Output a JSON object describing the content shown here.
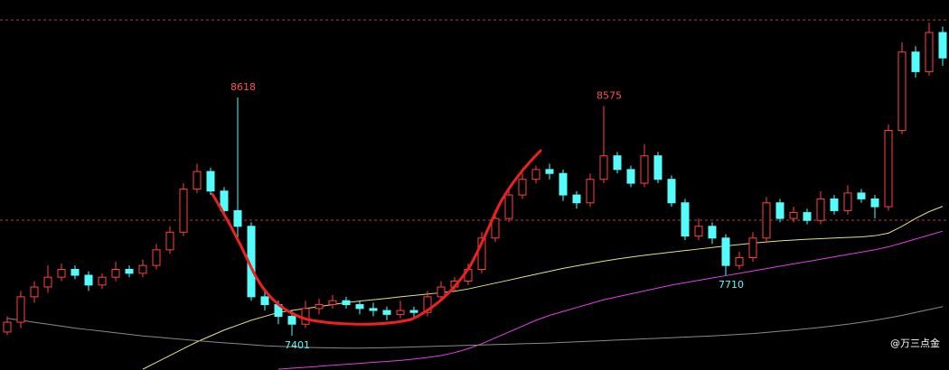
{
  "chart_data": {
    "type": "candlestick",
    "watermark": "@万三点金",
    "ylim": [
      7226,
      9116
    ],
    "up_color": "#ff4040",
    "down_color": "#54fcfc",
    "reference_lines": [
      9014,
      7991
    ],
    "reference_color": "#b83a3a",
    "open": [
      7420,
      7470,
      7600,
      7650,
      7700,
      7740,
      7710,
      7660,
      7700,
      7740,
      7720,
      7760,
      7840,
      7930,
      8150,
      8240,
      8140,
      8040,
      7960,
      7600,
      7560,
      7500,
      7460,
      7540,
      7560,
      7580,
      7560,
      7540,
      7530,
      7510,
      7530,
      7520,
      7600,
      7650,
      7680,
      7740,
      7900,
      8000,
      8120,
      8200,
      8250,
      8230,
      8120,
      8080,
      8200,
      8320,
      8250,
      8180,
      8320,
      8200,
      8080,
      7910,
      7960,
      7900,
      7760,
      7800,
      7900,
      8080,
      8000,
      8030,
      7990,
      8100,
      8040,
      8130,
      8100,
      8060,
      8450,
      8850,
      8750,
      8950
    ],
    "high": [
      7500,
      7630,
      7680,
      7760,
      7770,
      7760,
      7730,
      7720,
      7780,
      7760,
      7790,
      7870,
      7960,
      8180,
      8280,
      8260,
      8160,
      8618,
      7980,
      7630,
      7580,
      7530,
      7580,
      7590,
      7610,
      7600,
      7580,
      7570,
      7550,
      7580,
      7550,
      7630,
      7680,
      7700,
      7770,
      7930,
      8040,
      8150,
      8230,
      8270,
      8280,
      8250,
      8140,
      8230,
      8575,
      8340,
      8270,
      8380,
      8340,
      8220,
      8100,
      8000,
      7980,
      7920,
      7830,
      7930,
      8110,
      8100,
      8060,
      8050,
      8140,
      8120,
      8170,
      8150,
      8120,
      8480,
      8900,
      8880,
      9000,
      8980
    ],
    "low": [
      7405,
      7440,
      7570,
      7620,
      7680,
      7690,
      7630,
      7640,
      7680,
      7700,
      7700,
      7740,
      7820,
      7910,
      8130,
      8120,
      8020,
      7900,
      7580,
      7530,
      7460,
      7401,
      7440,
      7510,
      7540,
      7540,
      7510,
      7500,
      7480,
      7490,
      7490,
      7500,
      7580,
      7630,
      7660,
      7720,
      7880,
      7980,
      8100,
      8180,
      8200,
      8090,
      8050,
      8060,
      8180,
      8230,
      8160,
      8160,
      8180,
      8060,
      7890,
      7890,
      7870,
      7710,
      7740,
      7780,
      7880,
      7980,
      7980,
      7970,
      7970,
      8020,
      8020,
      8080,
      8000,
      8040,
      8430,
      8720,
      8730,
      8780
    ],
    "close": [
      7470,
      7600,
      7650,
      7700,
      7740,
      7710,
      7660,
      7700,
      7740,
      7720,
      7760,
      7840,
      7930,
      8150,
      8240,
      8140,
      8040,
      7960,
      7600,
      7560,
      7500,
      7460,
      7540,
      7560,
      7580,
      7560,
      7540,
      7530,
      7510,
      7530,
      7520,
      7600,
      7650,
      7680,
      7740,
      7900,
      8000,
      8120,
      8200,
      8250,
      8230,
      8120,
      8080,
      8200,
      8320,
      8250,
      8180,
      8320,
      8200,
      8080,
      7910,
      7960,
      7900,
      7760,
      7800,
      7900,
      8080,
      8000,
      8030,
      7990,
      8100,
      8040,
      8130,
      8100,
      8060,
      8450,
      8850,
      8750,
      8950,
      8820
    ],
    "series": [
      {
        "color": "#e8e07a",
        "values": [
          null,
          null,
          null,
          null,
          null,
          null,
          null,
          null,
          null,
          null,
          7230,
          7265,
          7300,
          7335,
          7370,
          7400,
          7430,
          7455,
          7480,
          7500,
          7520,
          7530,
          7540,
          7550,
          7560,
          7570,
          7578,
          7585,
          7592,
          7600,
          7607,
          7614,
          7621,
          7628,
          7640,
          7655,
          7670,
          7685,
          7700,
          7715,
          7730,
          7745,
          7758,
          7770,
          7782,
          7793,
          7803,
          7812,
          7820,
          7828,
          7836,
          7844,
          7852,
          7860,
          7867,
          7874,
          7880,
          7886,
          7890,
          7894,
          7897,
          7900,
          7903,
          7906,
          7912,
          7925,
          7960,
          8000,
          8035,
          8062
        ]
      },
      {
        "color": "#e040e0",
        "values": [
          null,
          null,
          null,
          null,
          null,
          null,
          null,
          null,
          null,
          null,
          null,
          null,
          null,
          null,
          null,
          null,
          null,
          null,
          null,
          null,
          7230,
          7235,
          7240,
          7245,
          7250,
          7255,
          7260,
          7265,
          7270,
          7275,
          7282,
          7290,
          7300,
          7315,
          7335,
          7360,
          7390,
          7420,
          7450,
          7480,
          7505,
          7525,
          7545,
          7565,
          7585,
          7600,
          7615,
          7630,
          7645,
          7660,
          7672,
          7684,
          7696,
          7708,
          7720,
          7732,
          7744,
          7756,
          7768,
          7780,
          7792,
          7804,
          7816,
          7828,
          7840,
          7855,
          7875,
          7895,
          7915,
          7935
        ]
      },
      {
        "color": "#8a8a8a",
        "values": [
          7490,
          7480,
          7470,
          7460,
          7450,
          7440,
          7432,
          7424,
          7416,
          7408,
          7400,
          7394,
          7388,
          7382,
          7376,
          7370,
          7365,
          7360,
          7355,
          7350,
          7347,
          7344,
          7342,
          7340,
          7339,
          7338,
          7338,
          7339,
          7340,
          7342,
          7344,
          7346,
          7348,
          7350,
          7352,
          7354,
          7356,
          7358,
          7360,
          7362,
          7364,
          7367,
          7370,
          7373,
          7376,
          7379,
          7382,
          7385,
          7388,
          7391,
          7394,
          7397,
          7400,
          7404,
          7408,
          7412,
          7418,
          7424,
          7430,
          7437,
          7444,
          7452,
          7460,
          7470,
          7480,
          7492,
          7505,
          7520,
          7535,
          7550
        ]
      }
    ]
  }
}
